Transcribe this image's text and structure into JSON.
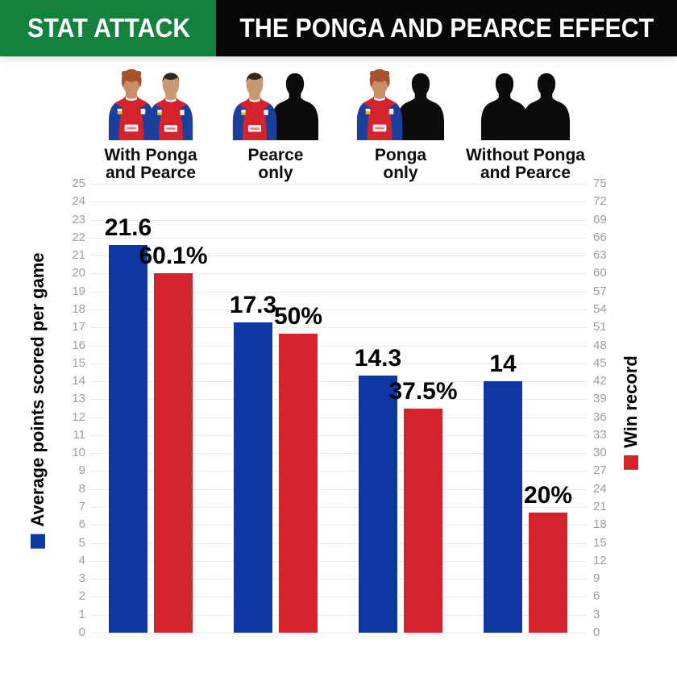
{
  "header": {
    "badge": "STAT ATTACK",
    "title": "THE PONGA AND PEARCE EFFECT"
  },
  "colors": {
    "badge_green": "#15813f",
    "title_black": "#060606",
    "bar_blue": "#0e37a4",
    "bar_red": "#d5232e",
    "gridline": "#ebebeb",
    "tick_text": "#9e9e9e",
    "silhouette_black": "#0c0c0c"
  },
  "groups": [
    {
      "line1": "With Ponga",
      "line2": "and Pearce",
      "figures": [
        "ponga",
        "pearce"
      ]
    },
    {
      "line1": "Pearce",
      "line2": "only",
      "figures": [
        "pearce",
        "silhouette"
      ]
    },
    {
      "line1": "Ponga",
      "line2": "only",
      "figures": [
        "ponga",
        "silhouette"
      ]
    },
    {
      "line1": "Without Ponga",
      "line2": "and Pearce",
      "figures": [
        "silhouette",
        "silhouette"
      ]
    }
  ],
  "chart_data": {
    "type": "bar",
    "categories": [
      "With Ponga and Pearce",
      "Pearce only",
      "Ponga only",
      "Without Ponga and Pearce"
    ],
    "series": [
      {
        "name": "Average points scored per game",
        "axis": "left",
        "color": "#0e37a4",
        "values": [
          21.6,
          17.3,
          14.3,
          14
        ],
        "labels": [
          "21.6",
          "17.3",
          "14.3",
          "14"
        ]
      },
      {
        "name": "Win record",
        "axis": "right",
        "color": "#d5232e",
        "values": [
          60.1,
          50,
          37.5,
          20
        ],
        "labels": [
          "60.1%",
          "50%",
          "37.5%",
          "20%"
        ]
      }
    ],
    "left_axis": {
      "label": "Average points scored per game",
      "min": 0,
      "max": 25,
      "step": 1
    },
    "right_axis": {
      "label": "Win record",
      "min": 0,
      "max": 75,
      "step": 3
    },
    "grid": true,
    "legend_position": "rotated-axis-titles"
  }
}
